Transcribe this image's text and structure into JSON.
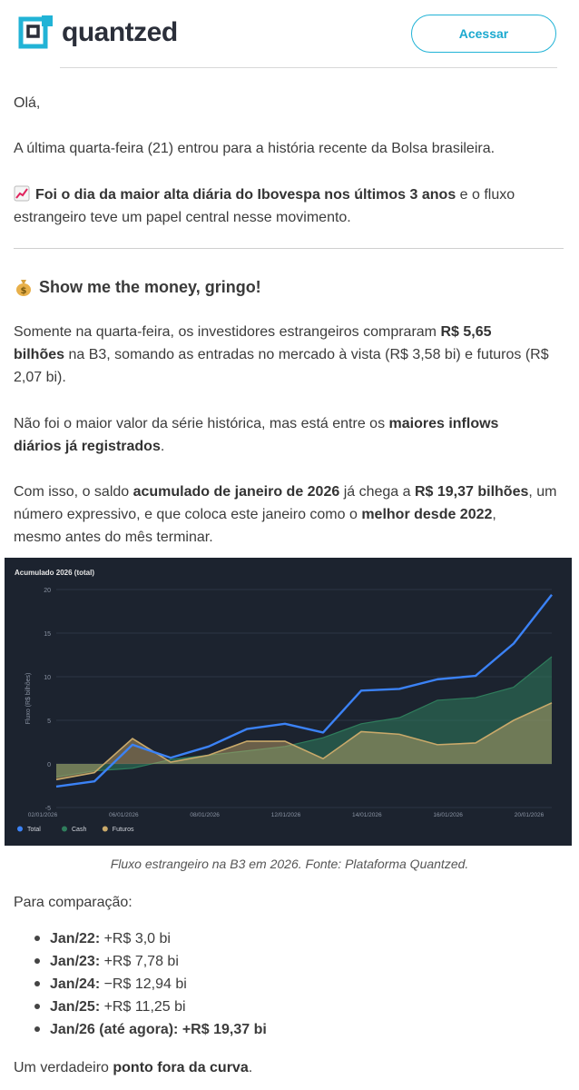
{
  "header": {
    "brand": "quantzed",
    "cta_label": "Acessar"
  },
  "body": {
    "greeting": "Olá,",
    "p1": "A última quarta-feira (21) entrou para a história recente da Bolsa brasileira.",
    "p2_bold": "Foi o dia da maior alta diária do Ibovespa nos últimos 3 anos",
    "p2_rest1": " e o fluxo",
    "p2_rest2": "estrangeiro teve um papel central nesse movimento.",
    "section_title": "Show me the money, gringo!",
    "p3_a": "Somente na quarta-feira, os investidores estrangeiros compraram ",
    "p3_bold1": "R$ 5,65",
    "p3_bold2": "bilhões",
    "p3_b": " na B3, somando as entradas no mercado à vista (R$ 3,58 bi) e futuros (R$",
    "p3_c": "2,07 bi).",
    "p4_a": "Não foi o maior valor da série histórica, mas está entre os ",
    "p4_bold1": "maiores inflows",
    "p4_bold2": "diários já registrados",
    "p4_b": ".",
    "p5_a": "Com isso, o saldo ",
    "p5_bold1": "acumulado de janeiro de 2026",
    "p5_b": " já chega a ",
    "p5_bold2": "R$ 19,37 bilhões",
    "p5_c": ", um",
    "p5_d": "número expressivo, e que coloca este janeiro como o ",
    "p5_bold3": "melhor desde 2022",
    "p5_e": ",",
    "p5_f": "mesmo antes do mês terminar.",
    "caption": "Fluxo estrangeiro na B3 em 2026. Fonte: Plataforma Quantzed.",
    "comparison_intro": "Para comparação:",
    "comparison": [
      {
        "label": "Jan/22:",
        "value": " +R$ 3,0 bi",
        "bold_value": false
      },
      {
        "label": "Jan/23:",
        "value": " +R$ 7,78 bi",
        "bold_value": false
      },
      {
        "label": "Jan/24:",
        "value": " −R$ 12,94 bi",
        "bold_value": false
      },
      {
        "label": "Jan/25:",
        "value": " +R$ 11,25 bi",
        "bold_value": false
      },
      {
        "label": "Jan/26 (até agora):",
        "value": " +R$ 19,37 bi",
        "bold_value": true
      }
    ],
    "closing_a": "Um verdadeiro ",
    "closing_bold": "ponto fora da curva",
    "closing_b": "."
  },
  "colors": {
    "accent": "#1ba9cf",
    "chart_bg": "#1c232f",
    "total": "#3b82f6",
    "cash": "#2f7d5c",
    "futuros": "#c9a96a"
  },
  "icons": {
    "chart_emoji": "chart-increasing-icon",
    "money_emoji": "money-bag-icon"
  },
  "chart_data": {
    "type": "area",
    "title": "Acumulado 2026 (total)",
    "ylabel": "Fluxo (R$ bilhões)",
    "xlabel": "",
    "ylim": [
      -5,
      20
    ],
    "yticks": [
      -5,
      0,
      5,
      10,
      15,
      20
    ],
    "xtick_labels": [
      "02/01/2026",
      "06/01/2026",
      "08/01/2026",
      "12/01/2026",
      "14/01/2026",
      "16/01/2026",
      "20/01/2026"
    ],
    "grid": true,
    "legend_position": "bottom-left",
    "x": [
      "02/01",
      "05/01",
      "06/01",
      "07/01",
      "08/01",
      "09/01",
      "12/01",
      "13/01",
      "14/01",
      "15/01",
      "16/01",
      "19/01",
      "20/01",
      "21/01"
    ],
    "series": [
      {
        "name": "Total",
        "values": [
          -2.6,
          -2.0,
          2.2,
          0.7,
          2.0,
          4.0,
          4.6,
          3.6,
          8.4,
          8.6,
          9.7,
          10.1,
          13.8,
          19.4
        ]
      },
      {
        "name": "Cash",
        "values": [
          -1.5,
          -0.8,
          -0.5,
          0.5,
          1.0,
          1.5,
          2.0,
          3.0,
          4.6,
          5.3,
          7.3,
          7.6,
          8.8,
          12.3
        ]
      },
      {
        "name": "Futuros",
        "values": [
          -1.8,
          -1.0,
          2.9,
          0.2,
          1.0,
          2.6,
          2.6,
          0.6,
          3.7,
          3.4,
          2.2,
          2.4,
          5.0,
          7.0
        ]
      }
    ]
  }
}
